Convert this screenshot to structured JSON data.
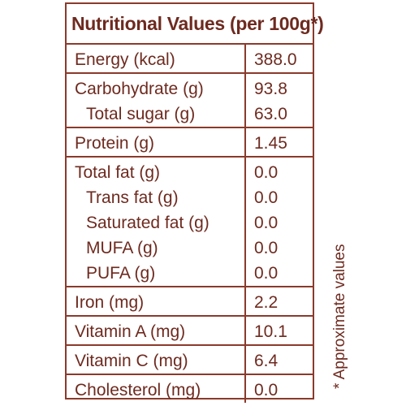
{
  "table": {
    "title": "Nutritional Values (per 100g*)",
    "groups": [
      {
        "rows": [
          {
            "name": "Energy (kcal)",
            "value": "388.0"
          }
        ]
      },
      {
        "rows": [
          {
            "name": "Carbohydrate (g)",
            "value": "93.8"
          },
          {
            "name": "Total sugar (g)",
            "value": "63.0"
          }
        ]
      },
      {
        "rows": [
          {
            "name": "Protein (g)",
            "value": "1.45"
          }
        ]
      },
      {
        "rows": [
          {
            "name": "Total fat (g)",
            "value": "0.0"
          },
          {
            "name": "Trans fat (g)",
            "value": "0.0"
          },
          {
            "name": "Saturated fat (g)",
            "value": "0.0"
          },
          {
            "name": "MUFA (g)",
            "value": "0.0"
          },
          {
            "name": "PUFA (g)",
            "value": "0.0"
          }
        ]
      },
      {
        "rows": [
          {
            "name": "Iron (mg)",
            "value": "2.2"
          }
        ]
      },
      {
        "rows": [
          {
            "name": "Vitamin A (mg)",
            "value": "10.1"
          }
        ]
      },
      {
        "rows": [
          {
            "name": "Vitamin C (mg)",
            "value": "6.4"
          }
        ]
      },
      {
        "rows": [
          {
            "name": "Cholesterol (mg)",
            "value": "0.0"
          }
        ]
      }
    ]
  },
  "footnote": "* Approximate values",
  "colors": {
    "text": "#6e2a1f",
    "border": "#8b3a2b"
  }
}
